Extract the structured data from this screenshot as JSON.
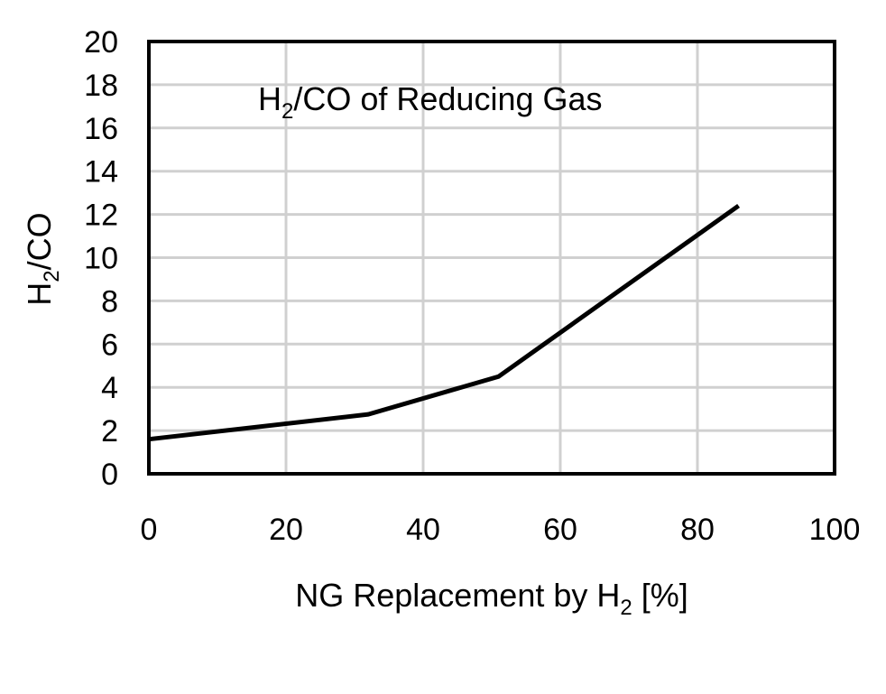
{
  "chart_data": {
    "type": "line",
    "title": "H2/CO of Reducing Gas",
    "title_parts": {
      "pre": "H",
      "sub": "2",
      "post": "/CO of Reducing Gas"
    },
    "xlabel": "NG Replacement by H2 [%]",
    "xlabel_parts": {
      "pre": "NG Replacement by H",
      "sub": "2",
      "post": " [%]"
    },
    "ylabel": "H2/CO",
    "ylabel_parts": {
      "pre": "H",
      "sub": "2",
      "post": "/CO"
    },
    "xlim": [
      0,
      100
    ],
    "ylim": [
      0,
      20
    ],
    "xticks": [
      0,
      20,
      40,
      60,
      80,
      100
    ],
    "yticks": [
      0,
      2,
      4,
      6,
      8,
      10,
      12,
      14,
      16,
      18,
      20
    ],
    "grid": true,
    "legend": "none",
    "series": [
      {
        "color": "#000000",
        "x": [
          0,
          32,
          51,
          86
        ],
        "y": [
          1.6,
          2.75,
          4.5,
          12.4
        ]
      }
    ]
  }
}
